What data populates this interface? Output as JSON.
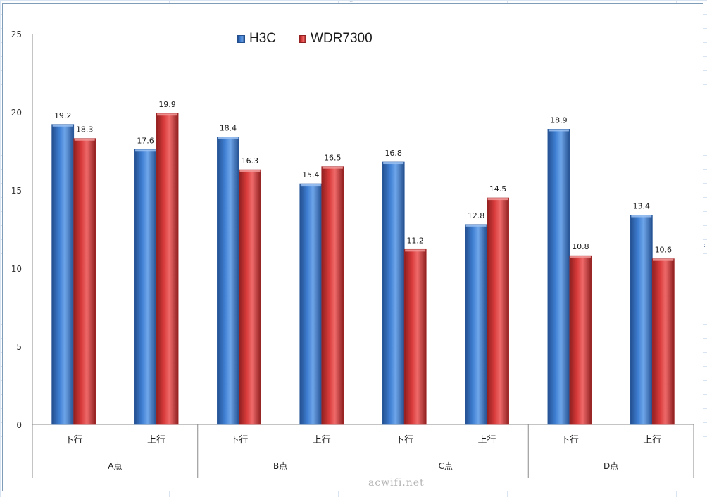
{
  "colors": {
    "H3C": "#3f7fd3",
    "WDR7300": "#d93b3b",
    "axis": "#8a8a8a",
    "frame": "#7f9db9"
  },
  "chart_data": {
    "type": "bar",
    "title": "",
    "xlabel": "",
    "ylabel": "",
    "ylim": [
      0,
      25
    ],
    "yticks": [
      "0",
      "5",
      "10",
      "15",
      "20",
      "25"
    ],
    "grid": false,
    "legend_position": "top",
    "groups": [
      {
        "label": "A点",
        "categories": [
          "下行",
          "上行"
        ]
      },
      {
        "label": "B点",
        "categories": [
          "下行",
          "上行"
        ]
      },
      {
        "label": "C点",
        "categories": [
          "下行",
          "上行"
        ]
      },
      {
        "label": "D点",
        "categories": [
          "下行",
          "上行"
        ]
      }
    ],
    "series": [
      {
        "name": "H3C",
        "color": "#3f7fd3",
        "values": [
          19.2,
          17.6,
          18.4,
          15.4,
          16.8,
          12.8,
          18.9,
          13.4
        ],
        "labels": [
          "19.2",
          "17.6",
          "18.4",
          "15.4",
          "16.8",
          "12.8",
          "18.9",
          "13.4"
        ]
      },
      {
        "name": "WDR7300",
        "color": "#d93b3b",
        "values": [
          18.3,
          19.9,
          16.3,
          16.5,
          11.2,
          14.5,
          10.8,
          10.6
        ],
        "labels": [
          "18.3",
          "19.9",
          "16.3",
          "16.5",
          "11.2",
          "14.5",
          "10.8",
          "10.6"
        ]
      }
    ]
  },
  "legend": {
    "items": [
      {
        "label": "H3C"
      },
      {
        "label": "WDR7300"
      }
    ]
  },
  "watermark": {
    "text": "acwifi.net"
  }
}
